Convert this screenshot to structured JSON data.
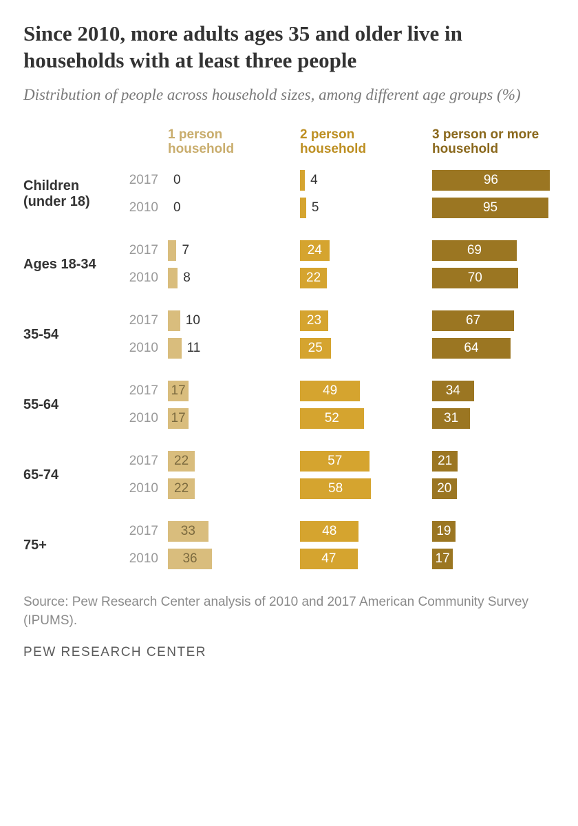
{
  "title": "Since 2010, more adults ages 35 and older live in households with at least three people",
  "subtitle": "Distribution of people across household sizes, among different age groups (%)",
  "columns": [
    {
      "label_l1": "1 person",
      "label_l2": "household",
      "color": "#d9bd7d",
      "header_color": "#c9ad6d",
      "text_on_bar": "#7b6a3f"
    },
    {
      "label_l1": "2 person",
      "label_l2": "household",
      "color": "#d5a42f",
      "header_color": "#bd8f22",
      "text_on_bar": "#ffffff"
    },
    {
      "label_l1": "3 person or more",
      "label_l2": "household",
      "color": "#9b7622",
      "header_color": "#8a681c",
      "text_on_bar": "#ffffff"
    }
  ],
  "max_value": 100,
  "groups": [
    {
      "label": "Children\n(under 18)",
      "rows": [
        {
          "year": "2017",
          "values": [
            0,
            4,
            96
          ],
          "outside": [
            true,
            true,
            false
          ]
        },
        {
          "year": "2010",
          "values": [
            0,
            5,
            95
          ],
          "outside": [
            true,
            true,
            false
          ]
        }
      ]
    },
    {
      "label": "Ages 18-34",
      "rows": [
        {
          "year": "2017",
          "values": [
            7,
            24,
            69
          ],
          "outside": [
            true,
            false,
            false
          ]
        },
        {
          "year": "2010",
          "values": [
            8,
            22,
            70
          ],
          "outside": [
            true,
            false,
            false
          ]
        }
      ]
    },
    {
      "label": "35-54",
      "rows": [
        {
          "year": "2017",
          "values": [
            10,
            23,
            67
          ],
          "outside": [
            true,
            false,
            false
          ]
        },
        {
          "year": "2010",
          "values": [
            11,
            25,
            64
          ],
          "outside": [
            true,
            false,
            false
          ]
        }
      ]
    },
    {
      "label": "55-64",
      "rows": [
        {
          "year": "2017",
          "values": [
            17,
            49,
            34
          ],
          "outside": [
            false,
            false,
            false
          ]
        },
        {
          "year": "2010",
          "values": [
            17,
            52,
            31
          ],
          "outside": [
            false,
            false,
            false
          ]
        }
      ]
    },
    {
      "label": "65-74",
      "rows": [
        {
          "year": "2017",
          "values": [
            22,
            57,
            21
          ],
          "outside": [
            false,
            false,
            false
          ]
        },
        {
          "year": "2010",
          "values": [
            22,
            58,
            20
          ],
          "outside": [
            false,
            false,
            false
          ]
        }
      ]
    },
    {
      "label": "75+",
      "rows": [
        {
          "year": "2017",
          "values": [
            33,
            48,
            19
          ],
          "outside": [
            false,
            false,
            false
          ]
        },
        {
          "year": "2010",
          "values": [
            36,
            47,
            17
          ],
          "outside": [
            false,
            false,
            false
          ]
        }
      ]
    }
  ],
  "source": "Source: Pew Research Center analysis of 2010 and 2017 American Community Survey (IPUMS).",
  "brand": "PEW RESEARCH CENTER"
}
